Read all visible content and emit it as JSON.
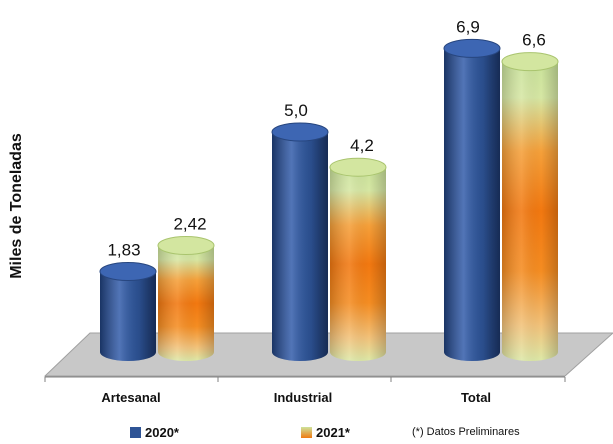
{
  "chart_data": {
    "type": "bar",
    "ylabel": "Miles de Toneladas",
    "categories": [
      "Artesanal",
      "Industrial",
      "Total"
    ],
    "series": [
      {
        "name": "2020*",
        "values": [
          1.83,
          5.0,
          6.9
        ],
        "labels": [
          "1,83",
          "5,0",
          "6,9"
        ],
        "color": "#2e5496"
      },
      {
        "name": "2021*",
        "values": [
          2.42,
          4.2,
          6.6
        ],
        "labels": [
          "2,42",
          "4,2",
          "6,6"
        ],
        "color": "#f07a10"
      }
    ],
    "ylim": [
      0,
      7.5
    ],
    "grid": false,
    "legend_position": "bottom",
    "note": "(*) Datos Preliminares"
  }
}
